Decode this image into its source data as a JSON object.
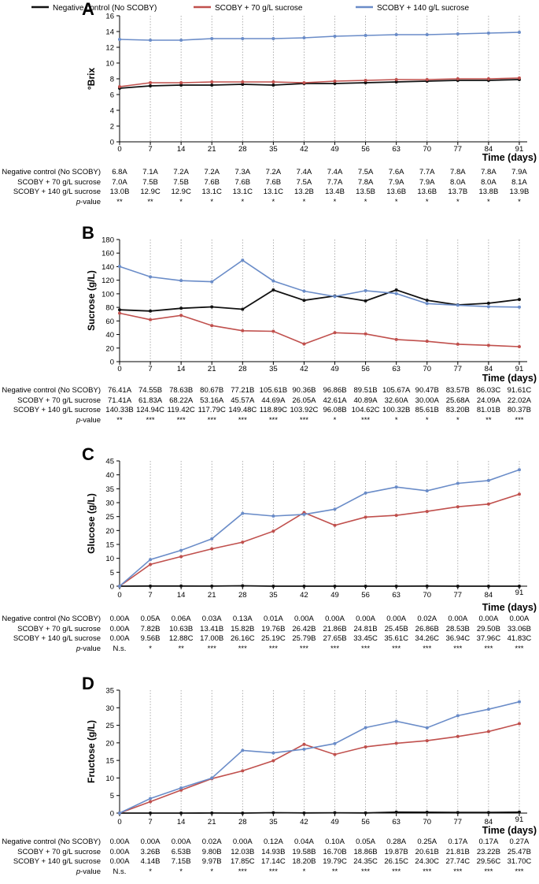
{
  "legend": {
    "items": [
      {
        "name": "Negative control (No SCOBY)",
        "color": "#111111"
      },
      {
        "name": "SCOBY + 70 g/L sucrose",
        "color": "#c0504d"
      },
      {
        "name": "SCOBY + 140 g/L sucrose",
        "color": "#6a8cc8"
      }
    ]
  },
  "table_labels": [
    "Negative control (No SCOBY)",
    "SCOBY + 70 g/L sucrose",
    "SCOBY + 140 g/L sucrose",
    "p-value"
  ],
  "chart_data": [
    {
      "panel": "A",
      "type": "line",
      "ylabel": "°Brix",
      "xlabel": "Time (days)",
      "x": [
        0,
        7,
        14,
        21,
        28,
        35,
        42,
        49,
        56,
        63,
        70,
        77,
        84,
        91
      ],
      "ylim": [
        0,
        16
      ],
      "yticks": [
        0,
        2,
        4,
        6,
        8,
        10,
        12,
        14,
        16
      ],
      "grid": true,
      "series": [
        {
          "name": "Negative control (No SCOBY)",
          "values": [
            6.8,
            7.1,
            7.2,
            7.2,
            7.3,
            7.2,
            7.4,
            7.4,
            7.5,
            7.6,
            7.7,
            7.8,
            7.8,
            7.9
          ]
        },
        {
          "name": "SCOBY + 70 g/L sucrose",
          "values": [
            7.0,
            7.5,
            7.5,
            7.6,
            7.6,
            7.6,
            7.5,
            7.7,
            7.8,
            7.9,
            7.9,
            8.0,
            8.0,
            8.1
          ]
        },
        {
          "name": "SCOBY + 140 g/L sucrose",
          "values": [
            13.0,
            12.9,
            12.9,
            13.1,
            13.1,
            13.1,
            13.2,
            13.4,
            13.5,
            13.6,
            13.6,
            13.7,
            13.8,
            13.9
          ]
        }
      ],
      "table": {
        "rows": [
          [
            "6.8A",
            "7.1A",
            "7.2A",
            "7.2A",
            "7.3A",
            "7.2A",
            "7.4A",
            "7.4A",
            "7.5A",
            "7.6A",
            "7.7A",
            "7.8A",
            "7.8A",
            "7.9A"
          ],
          [
            "7.0A",
            "7.5B",
            "7.5B",
            "7.6B",
            "7.6B",
            "7.6B",
            "7.5A",
            "7.7A",
            "7.8A",
            "7.9A",
            "7.9A",
            "8.0A",
            "8.0A",
            "8.1A"
          ],
          [
            "13.0B",
            "12.9C",
            "12.9C",
            "13.1C",
            "13.1C",
            "13.1C",
            "13.2B",
            "13.4B",
            "13.5B",
            "13.6B",
            "13.6B",
            "13.7B",
            "13.8B",
            "13.9B"
          ],
          [
            "**",
            "**",
            "*",
            "*",
            "*",
            "*",
            "*",
            "*",
            "*",
            "*",
            "*",
            "*",
            "*",
            "*"
          ]
        ]
      }
    },
    {
      "panel": "B",
      "type": "line",
      "ylabel": "Sucrose (g/L)",
      "xlabel": "Time (days)",
      "x": [
        0,
        7,
        14,
        21,
        28,
        35,
        42,
        49,
        56,
        63,
        70,
        77,
        84,
        91
      ],
      "ylim": [
        0,
        180
      ],
      "yticks": [
        0,
        20,
        40,
        60,
        80,
        100,
        120,
        140,
        160,
        180
      ],
      "grid": true,
      "series": [
        {
          "name": "Negative control (No SCOBY)",
          "values": [
            76.41,
            74.55,
            78.63,
            80.67,
            77.21,
            105.61,
            90.36,
            96.86,
            89.51,
            105.67,
            90.47,
            83.57,
            86.03,
            91.61
          ]
        },
        {
          "name": "SCOBY + 70 g/L sucrose",
          "values": [
            71.41,
            61.83,
            68.22,
            53.16,
            45.57,
            44.69,
            26.05,
            42.61,
            40.89,
            32.6,
            30.0,
            25.68,
            24.09,
            22.02
          ]
        },
        {
          "name": "SCOBY + 140 g/L sucrose",
          "values": [
            140.33,
            124.94,
            119.42,
            117.79,
            149.48,
            118.89,
            103.92,
            96.08,
            104.62,
            100.32,
            85.61,
            83.2,
            81.01,
            80.37
          ]
        }
      ],
      "table": {
        "rows": [
          [
            "76.41A",
            "74.55B",
            "78.63B",
            "80.67B",
            "77.21B",
            "105.61B",
            "90.36B",
            "96.86B",
            "89.51B",
            "105.67A",
            "90.47B",
            "83.57B",
            "86.03C",
            "91.61C"
          ],
          [
            "71.41A",
            "61.83A",
            "68.22A",
            "53.16A",
            "45.57A",
            "44.69A",
            "26.05A",
            "42.61A",
            "40.89A",
            "32.60A",
            "30.00A",
            "25.68A",
            "24.09A",
            "22.02A"
          ],
          [
            "140.33B",
            "124.94C",
            "119.42C",
            "117.79C",
            "149.48C",
            "118.89C",
            "103.92C",
            "96.08B",
            "104.62C",
            "100.32B",
            "85.61B",
            "83.20B",
            "81.01B",
            "80.37B"
          ],
          [
            "**",
            "***",
            "***",
            "***",
            "***",
            "***",
            "***",
            "*",
            "***",
            "*",
            "*",
            "*",
            "**",
            "***"
          ]
        ]
      }
    },
    {
      "panel": "C",
      "type": "line",
      "ylabel": "Glucose (g/L)",
      "xlabel": "Time (days)",
      "x": [
        0,
        7,
        14,
        21,
        28,
        35,
        42,
        49,
        56,
        63,
        70,
        77,
        84,
        91
      ],
      "ylim": [
        0,
        45
      ],
      "yticks": [
        0,
        5,
        10,
        15,
        20,
        25,
        30,
        35,
        40,
        45
      ],
      "grid": true,
      "series": [
        {
          "name": "Negative control (No SCOBY)",
          "values": [
            0.0,
            0.05,
            0.06,
            0.03,
            0.13,
            0.01,
            0.0,
            0.0,
            0.0,
            0.0,
            0.02,
            0.0,
            0.0,
            0.0
          ]
        },
        {
          "name": "SCOBY + 70 g/L sucrose",
          "values": [
            0.0,
            7.82,
            10.63,
            13.41,
            15.82,
            19.76,
            26.42,
            21.86,
            24.81,
            25.45,
            26.86,
            28.53,
            29.5,
            33.06
          ]
        },
        {
          "name": "SCOBY + 140 g/L sucrose",
          "values": [
            0.0,
            9.56,
            12.88,
            17.0,
            26.16,
            25.19,
            25.79,
            27.65,
            33.45,
            35.61,
            34.26,
            36.94,
            37.96,
            41.83
          ]
        }
      ],
      "table": {
        "rows": [
          [
            "0.00A",
            "0.05A",
            "0.06A",
            "0.03A",
            "0.13A",
            "0.01A",
            "0.00A",
            "0.00A",
            "0.00A",
            "0.00A",
            "0.02A",
            "0.00A",
            "0.00A",
            "0.00A"
          ],
          [
            "0.00A",
            "7.82B",
            "10.63B",
            "13.41B",
            "15.82B",
            "19.76B",
            "26.42B",
            "21.86B",
            "24.81B",
            "25.45B",
            "26.86B",
            "28.53B",
            "29.50B",
            "33.06B"
          ],
          [
            "0.00A",
            "9.56B",
            "12.88C",
            "17.00B",
            "26.16C",
            "25.19C",
            "25.79B",
            "27.65B",
            "33.45C",
            "35.61C",
            "34.26C",
            "36.94C",
            "37.96C",
            "41.83C"
          ],
          [
            "N.s.",
            "*",
            "**",
            "***",
            "***",
            "***",
            "***",
            "***",
            "***",
            "***",
            "***",
            "***",
            "***",
            "***"
          ]
        ]
      }
    },
    {
      "panel": "D",
      "type": "line",
      "ylabel": "Fructose (g/L)",
      "xlabel": "Time (days)",
      "x": [
        0,
        7,
        14,
        21,
        28,
        35,
        42,
        49,
        56,
        63,
        70,
        77,
        84,
        91
      ],
      "ylim": [
        0,
        35
      ],
      "yticks": [
        0,
        5,
        10,
        15,
        20,
        25,
        30,
        35
      ],
      "grid": true,
      "series": [
        {
          "name": "Negative control (No SCOBY)",
          "values": [
            0.0,
            0.0,
            0.0,
            0.02,
            0.0,
            0.12,
            0.04,
            0.1,
            0.05,
            0.28,
            0.25,
            0.17,
            0.17,
            0.27
          ]
        },
        {
          "name": "SCOBY + 70 g/L sucrose",
          "values": [
            0.0,
            3.26,
            6.53,
            9.8,
            12.03,
            14.93,
            19.58,
            16.7,
            18.86,
            19.87,
            20.61,
            21.81,
            23.22,
            25.47
          ]
        },
        {
          "name": "SCOBY + 140 g/L sucrose",
          "values": [
            0.0,
            4.14,
            7.15,
            9.97,
            17.85,
            17.14,
            18.2,
            19.79,
            24.35,
            26.15,
            24.3,
            27.74,
            29.56,
            31.7
          ]
        }
      ],
      "table": {
        "rows": [
          [
            "0.00A",
            "0.00A",
            "0.00A",
            "0.02A",
            "0.00A",
            "0.12A",
            "0.04A",
            "0.10A",
            "0.05A",
            "0.28A",
            "0.25A",
            "0.17A",
            "0.17A",
            "0.27A"
          ],
          [
            "0.00A",
            "3.26B",
            "6.53B",
            "9.80B",
            "12.03B",
            "14.93B",
            "19.58B",
            "16.70B",
            "18.86B",
            "19.87B",
            "20.61B",
            "21.81B",
            "23.22B",
            "25.47B"
          ],
          [
            "0.00A",
            "4.14B",
            "7.15B",
            "9.97B",
            "17.85C",
            "17.14C",
            "18.20B",
            "19.79C",
            "24.35C",
            "26.15C",
            "24.30C",
            "27.74C",
            "29.56C",
            "31.70C"
          ],
          [
            "N.s.",
            "*",
            "*",
            "*",
            "***",
            "***",
            "*",
            "**",
            "***",
            "***",
            "***",
            "***",
            "***",
            "***"
          ]
        ]
      }
    }
  ]
}
